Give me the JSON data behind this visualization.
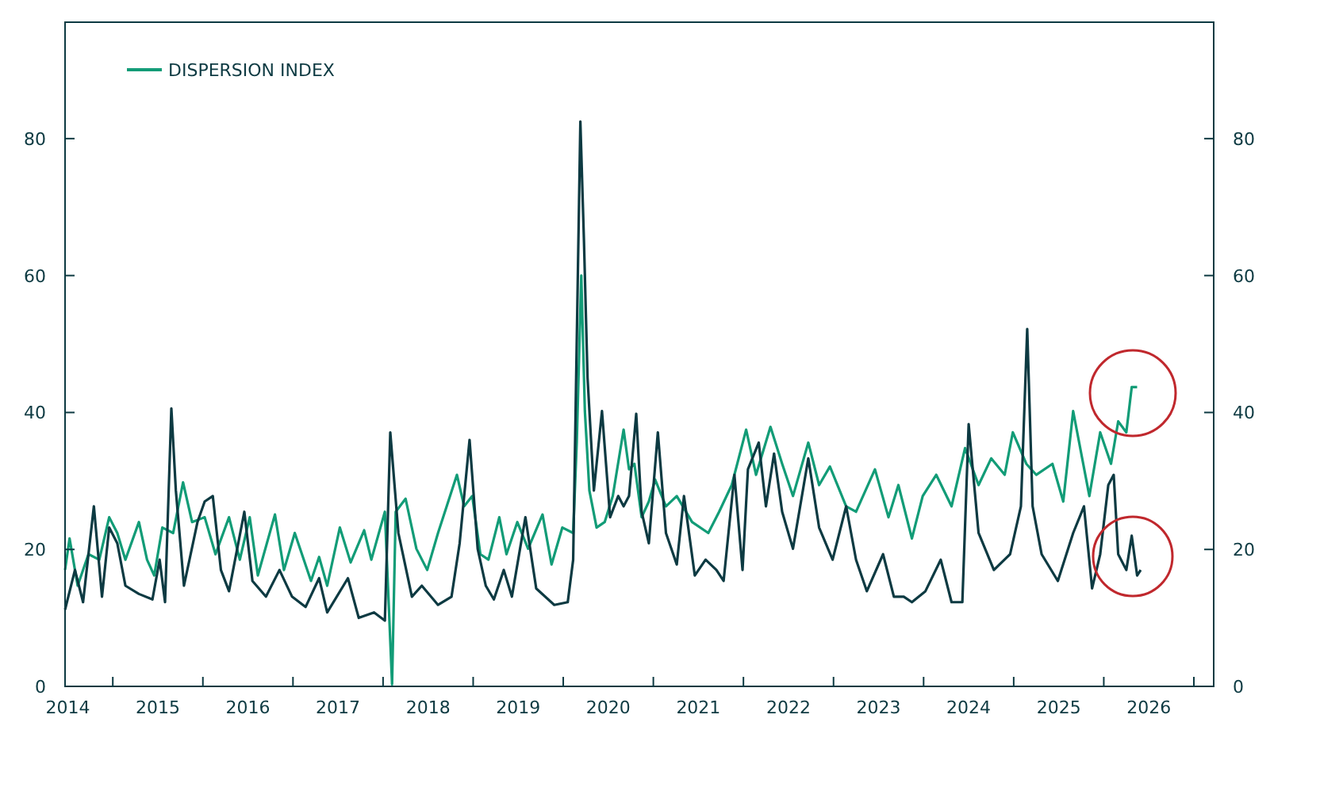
{
  "chart_data": {
    "type": "line",
    "legend": "top left",
    "xlim": [
      2014.47,
      2027.22
    ],
    "xticks": [
      {
        "value": 2014.5,
        "label": "2014"
      },
      {
        "value": 2015,
        "label": null
      },
      {
        "value": 2015.5,
        "label": "2015"
      },
      {
        "value": 2016,
        "label": null
      },
      {
        "value": 2016.5,
        "label": "2016"
      },
      {
        "value": 2017,
        "label": null
      },
      {
        "value": 2017.5,
        "label": "2017"
      },
      {
        "value": 2018,
        "label": null
      },
      {
        "value": 2018.5,
        "label": "2018"
      },
      {
        "value": 2019,
        "label": null
      },
      {
        "value": 2019.5,
        "label": "2019"
      },
      {
        "value": 2020,
        "label": null
      },
      {
        "value": 2020.5,
        "label": "2020"
      },
      {
        "value": 2021,
        "label": null
      },
      {
        "value": 2021.5,
        "label": "2021"
      },
      {
        "value": 2022,
        "label": null
      },
      {
        "value": 2022.5,
        "label": "2022"
      },
      {
        "value": 2023,
        "label": null
      },
      {
        "value": 2023.5,
        "label": "2023"
      },
      {
        "value": 2024,
        "label": null
      },
      {
        "value": 2024.5,
        "label": "2024"
      },
      {
        "value": 2025,
        "label": null
      },
      {
        "value": 2025.5,
        "label": "2025"
      },
      {
        "value": 2026,
        "label": null
      },
      {
        "value": 2026.5,
        "label": "2026"
      },
      {
        "value": 2027,
        "label": null
      }
    ],
    "ylim": [
      0,
      97
    ],
    "yticks": [
      0,
      20,
      40,
      60,
      80
    ],
    "y2lim": [
      0,
      97
    ],
    "y2ticks": [
      0,
      20,
      40,
      60,
      80
    ],
    "series": [
      {
        "name": "DISPERSION INDEX",
        "color": "#129c77",
        "x": [
          2014.47,
          2014.52,
          2014.61,
          2014.73,
          2014.85,
          2014.96,
          2015.05,
          2015.14,
          2015.29,
          2015.38,
          2015.46,
          2015.55,
          2015.67,
          2015.78,
          2015.88,
          2016.02,
          2016.14,
          2016.29,
          2016.41,
          2016.52,
          2016.61,
          2016.8,
          2016.9,
          2017.02,
          2017.2,
          2017.29,
          2017.38,
          2017.52,
          2017.64,
          2017.79,
          2017.87,
          2018.02,
          2018.1,
          2018.14,
          2018.25,
          2018.37,
          2018.49,
          2018.61,
          2018.82,
          2018.9,
          2018.99,
          2019.08,
          2019.17,
          2019.29,
          2019.37,
          2019.49,
          2019.61,
          2019.77,
          2019.87,
          2019.99,
          2020.11,
          2020.15,
          2020.2,
          2020.24,
          2020.29,
          2020.37,
          2020.46,
          2020.55,
          2020.67,
          2020.73,
          2020.79,
          2020.87,
          2020.95,
          2021.02,
          2021.14,
          2021.26,
          2021.43,
          2021.61,
          2021.73,
          2021.87,
          2022.03,
          2022.14,
          2022.3,
          2022.43,
          2022.55,
          2022.72,
          2022.84,
          2022.96,
          2023.14,
          2023.25,
          2023.46,
          2023.61,
          2023.72,
          2023.87,
          2023.99,
          2024.14,
          2024.31,
          2024.46,
          2024.61,
          2024.75,
          2024.9,
          2024.99,
          2025.14,
          2025.25,
          2025.43,
          2025.55,
          2025.66,
          2025.84,
          2025.96,
          2026.08,
          2026.16,
          2026.25,
          2026.31,
          2026.37
        ],
        "values": [
          17,
          21.6,
          14.7,
          19.3,
          18.5,
          24.7,
          22.4,
          18.5,
          24,
          18.5,
          16.2,
          23.2,
          22.4,
          29.8,
          24,
          24.7,
          19.3,
          24.7,
          18.5,
          24.7,
          16.2,
          25.1,
          17,
          22.4,
          15.4,
          18.9,
          14.7,
          23.2,
          18.1,
          22.8,
          18.5,
          25.5,
          0.3,
          25.5,
          27.4,
          20.1,
          17,
          22.4,
          30.9,
          26.3,
          27.8,
          19.3,
          18.5,
          24.7,
          19.3,
          24,
          20.1,
          25.1,
          17.8,
          23.2,
          22.4,
          35.6,
          60,
          40.2,
          28.6,
          23.2,
          24,
          27.8,
          37.5,
          31.7,
          32.5,
          24.7,
          27,
          30.2,
          26.3,
          27.8,
          24,
          22.4,
          25.5,
          29.4,
          37.5,
          30.9,
          37.9,
          32.5,
          27.8,
          35.6,
          29.4,
          32.1,
          26.3,
          25.5,
          31.7,
          24.7,
          29.4,
          21.6,
          27.8,
          30.9,
          26.3,
          34.8,
          29.4,
          33.3,
          30.9,
          37.1,
          32.5,
          30.9,
          32.5,
          27,
          40.2,
          27.8,
          37.1,
          32.5,
          38.7,
          37.1,
          43.7,
          43.7
        ]
      },
      {
        "color": "#0d3a42",
        "x": [
          2014.47,
          2014.58,
          2014.67,
          2014.79,
          2014.88,
          2014.96,
          2015.05,
          2015.14,
          2015.29,
          2015.44,
          2015.52,
          2015.58,
          2015.65,
          2015.7,
          2015.79,
          2015.94,
          2016.02,
          2016.11,
          2016.2,
          2016.29,
          2016.46,
          2016.55,
          2016.7,
          2016.85,
          2016.99,
          2017.14,
          2017.29,
          2017.38,
          2017.61,
          2017.73,
          2017.9,
          2018.02,
          2018.08,
          2018.17,
          2018.32,
          2018.43,
          2018.61,
          2018.76,
          2018.85,
          2018.96,
          2019.05,
          2019.14,
          2019.23,
          2019.34,
          2019.43,
          2019.58,
          2019.7,
          2019.9,
          2020.05,
          2020.11,
          2020.19,
          2020.23,
          2020.27,
          2020.34,
          2020.43,
          2020.52,
          2020.61,
          2020.67,
          2020.73,
          2020.81,
          2020.87,
          2020.95,
          2021.05,
          2021.14,
          2021.26,
          2021.34,
          2021.46,
          2021.58,
          2021.7,
          2021.78,
          2021.9,
          2021.99,
          2022.05,
          2022.17,
          2022.25,
          2022.34,
          2022.43,
          2022.55,
          2022.72,
          2022.84,
          2022.99,
          2023.14,
          2023.25,
          2023.37,
          2023.55,
          2023.67,
          2023.78,
          2023.87,
          2024.02,
          2024.19,
          2024.31,
          2024.43,
          2024.5,
          2024.61,
          2024.78,
          2024.96,
          2025.08,
          2025.15,
          2025.21,
          2025.31,
          2025.49,
          2025.66,
          2025.78,
          2025.87,
          2025.96,
          2026.05,
          2026.11,
          2026.16,
          2026.25,
          2026.31,
          2026.37,
          2026.41
        ],
        "values": [
          11.2,
          17,
          12.3,
          26.3,
          13.1,
          23.2,
          20.9,
          14.7,
          13.5,
          12.7,
          18.5,
          12.3,
          40.6,
          28.6,
          14.7,
          24,
          27,
          27.8,
          17,
          13.9,
          25.5,
          15.4,
          13.1,
          17,
          13.1,
          11.6,
          15.8,
          10.8,
          15.8,
          10,
          10.8,
          9.6,
          37.1,
          22.4,
          13.1,
          14.7,
          11.9,
          13.1,
          20.9,
          36,
          20.1,
          14.7,
          12.7,
          17,
          13.1,
          24.7,
          14.3,
          11.9,
          12.3,
          18.5,
          82.5,
          65,
          45,
          28.6,
          40.2,
          24.7,
          27.8,
          26.3,
          27.8,
          39.8,
          25.5,
          20.9,
          37.1,
          22.4,
          17.8,
          27.8,
          16.2,
          18.5,
          17,
          15.4,
          30.9,
          17,
          31.7,
          35.6,
          26.3,
          34,
          25.5,
          20.1,
          33.3,
          23.2,
          18.5,
          26.3,
          18.5,
          13.9,
          19.3,
          13.1,
          13.1,
          12.3,
          13.9,
          18.5,
          12.3,
          12.3,
          38.3,
          22.4,
          17,
          19.3,
          26.3,
          52.2,
          26.3,
          19.3,
          15.4,
          22.4,
          26.3,
          14.3,
          19.3,
          29.4,
          30.9,
          19.3,
          17,
          22,
          16.2,
          17
        ]
      }
    ]
  }
}
